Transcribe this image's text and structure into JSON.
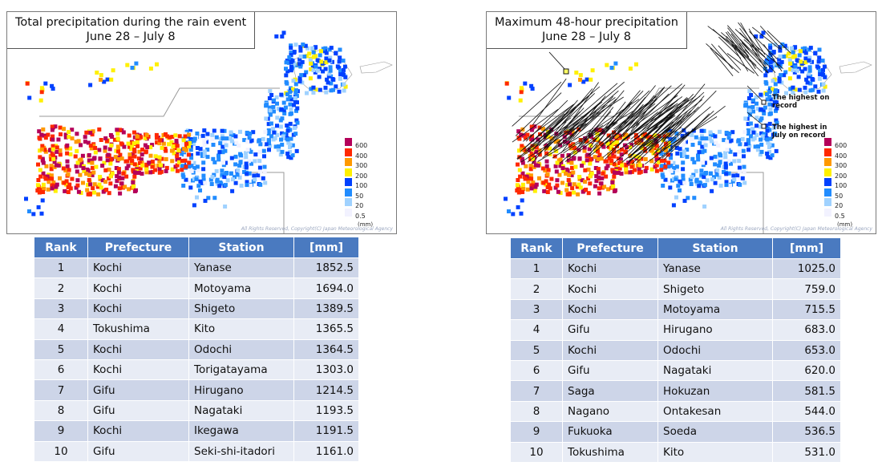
{
  "left": {
    "title_line1": "Total precipitation during the rain event",
    "title_line2": "June 28 – July 8",
    "headers": {
      "rank": "Rank",
      "prefecture": "Prefecture",
      "station": "Station",
      "mm": "[mm]"
    },
    "rows": [
      {
        "rank": "1",
        "prefecture": "Kochi",
        "station": "Yanase",
        "mm": "1852.5"
      },
      {
        "rank": "2",
        "prefecture": "Kochi",
        "station": "Motoyama",
        "mm": "1694.0"
      },
      {
        "rank": "3",
        "prefecture": "Kochi",
        "station": "Shigeto",
        "mm": "1389.5"
      },
      {
        "rank": "4",
        "prefecture": "Tokushima",
        "station": "Kito",
        "mm": "1365.5"
      },
      {
        "rank": "5",
        "prefecture": "Kochi",
        "station": "Odochi",
        "mm": "1364.5"
      },
      {
        "rank": "6",
        "prefecture": "Kochi",
        "station": "Torigatayama",
        "mm": "1303.0"
      },
      {
        "rank": "7",
        "prefecture": "Gifu",
        "station": "Hirugano",
        "mm": "1214.5"
      },
      {
        "rank": "8",
        "prefecture": "Gifu",
        "station": "Nagataki",
        "mm": "1193.5"
      },
      {
        "rank": "9",
        "prefecture": "Kochi",
        "station": "Ikegawa",
        "mm": "1191.5"
      },
      {
        "rank": "10",
        "prefecture": "Gifu",
        "station": "Seki-shi-itadori",
        "mm": "1161.0"
      }
    ]
  },
  "right": {
    "title_line1": "Maximum 48-hour precipitation",
    "title_line2": "June 28 – July 8",
    "annotation_record": "The highest on record",
    "annotation_july_1": "The highest in",
    "annotation_july_2": "July on record",
    "headers": {
      "rank": "Rank",
      "prefecture": "Prefecture",
      "station": "Station",
      "mm": "[mm]"
    },
    "rows": [
      {
        "rank": "1",
        "prefecture": "Kochi",
        "station": "Yanase",
        "mm": "1025.0"
      },
      {
        "rank": "2",
        "prefecture": "Kochi",
        "station": "Shigeto",
        "mm": "759.0"
      },
      {
        "rank": "3",
        "prefecture": "Kochi",
        "station": "Motoyama",
        "mm": "715.5"
      },
      {
        "rank": "4",
        "prefecture": "Gifu",
        "station": "Hirugano",
        "mm": "683.0"
      },
      {
        "rank": "5",
        "prefecture": "Kochi",
        "station": "Odochi",
        "mm": "653.0"
      },
      {
        "rank": "6",
        "prefecture": "Gifu",
        "station": "Nagataki",
        "mm": "620.0"
      },
      {
        "rank": "7",
        "prefecture": "Saga",
        "station": "Hokuzan",
        "mm": "581.5"
      },
      {
        "rank": "8",
        "prefecture": "Nagano",
        "station": "Ontakesan",
        "mm": "544.0"
      },
      {
        "rank": "9",
        "prefecture": "Fukuoka",
        "station": "Soeda",
        "mm": "536.5"
      },
      {
        "rank": "10",
        "prefecture": "Tokushima",
        "station": "Kito",
        "mm": "531.0"
      }
    ]
  },
  "legend": {
    "unit": "(mm)",
    "levels": [
      {
        "label": "600",
        "color": "#b4005a"
      },
      {
        "label": "400",
        "color": "#ff2800"
      },
      {
        "label": "300",
        "color": "#ff9900"
      },
      {
        "label": "200",
        "color": "#fff000"
      },
      {
        "label": "100",
        "color": "#0041ff"
      },
      {
        "label": "50",
        "color": "#218cff"
      },
      {
        "label": "20",
        "color": "#a0d2ff"
      },
      {
        "label": "0.5",
        "color": "#f2f2ff"
      }
    ]
  },
  "copyright": "All Rights Reserved, Copyright(C) Japan Meteorological Agency"
}
